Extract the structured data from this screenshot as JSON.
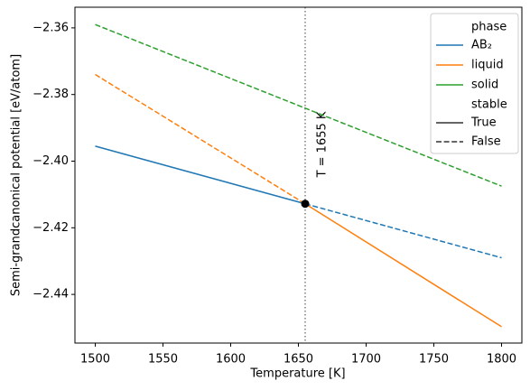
{
  "chart_data": {
    "type": "line",
    "xlabel": "Temperature [K]",
    "ylabel": "Semi-grandcanonical potential [eV/atom]",
    "x": [
      1500,
      1655,
      1800
    ],
    "series": [
      {
        "name": "AB₂",
        "color": "#1f77b4",
        "stable_values": [
          -2.3955,
          -2.4128,
          null
        ],
        "unstable_values": [
          null,
          -2.4128,
          -2.429
        ]
      },
      {
        "name": "liquid",
        "color": "#ff7f0e",
        "stable_values": [
          null,
          -2.4128,
          -2.4497
        ],
        "unstable_values": [
          -2.374,
          -2.4128,
          null
        ]
      },
      {
        "name": "solid",
        "color": "#2ca02c",
        "stable_values": [
          null,
          null,
          null
        ],
        "unstable_values": [
          -2.359,
          -2.3841,
          -2.4075
        ]
      }
    ],
    "legend": {
      "phase_title": "phase",
      "stable_title": "stable",
      "stable_label": "True",
      "unstable_label": "False",
      "position": "upper right"
    },
    "vline": {
      "x": 1655,
      "label": "T = 1655 K"
    },
    "point": {
      "x": 1655,
      "y": -2.4128
    },
    "xlim": [
      1485,
      1815
    ],
    "xticks": [
      1500,
      1550,
      1600,
      1650,
      1700,
      1750,
      1800
    ],
    "ylim": [
      -2.4546,
      -2.3538
    ],
    "yticks": [
      {
        "value": -2.36,
        "label": "−2.36"
      },
      {
        "value": -2.38,
        "label": "−2.38"
      },
      {
        "value": -2.4,
        "label": "−2.40"
      },
      {
        "value": -2.42,
        "label": "−2.42"
      },
      {
        "value": -2.44,
        "label": "−2.44"
      }
    ],
    "grid": false
  }
}
